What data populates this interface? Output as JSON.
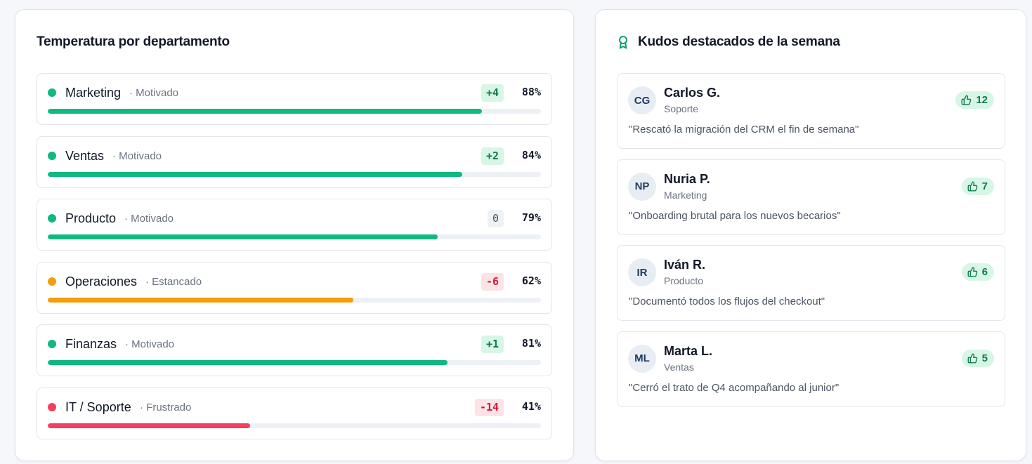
{
  "temperature": {
    "title": "Temperatura por departamento",
    "departments": [
      {
        "name": "Marketing",
        "status": "· Motivado",
        "delta": "+4",
        "percent": "88%",
        "value": 88,
        "tone": "good"
      },
      {
        "name": "Ventas",
        "status": "· Motivado",
        "delta": "+2",
        "percent": "84%",
        "value": 84,
        "tone": "good"
      },
      {
        "name": "Producto",
        "status": "· Motivado",
        "delta": "0",
        "percent": "79%",
        "value": 79,
        "tone": "good",
        "delta_tone": "neutral"
      },
      {
        "name": "Operaciones",
        "status": "· Estancado",
        "delta": "-6",
        "percent": "62%",
        "value": 62,
        "tone": "warn"
      },
      {
        "name": "Finanzas",
        "status": "· Motivado",
        "delta": "+1",
        "percent": "81%",
        "value": 81,
        "tone": "good"
      },
      {
        "name": "IT / Soporte",
        "status": "· Frustrado",
        "delta": "-14",
        "percent": "41%",
        "value": 41,
        "tone": "bad"
      }
    ]
  },
  "kudos": {
    "title": "Kudos destacados de la semana",
    "icon": "award-icon",
    "items": [
      {
        "initials": "CG",
        "name": "Carlos G.",
        "department": "Soporte",
        "quote": "\"Rescató la migración del CRM el fin de semana\"",
        "likes": "12"
      },
      {
        "initials": "NP",
        "name": "Nuria P.",
        "department": "Marketing",
        "quote": "\"Onboarding brutal para los nuevos becarios\"",
        "likes": "7"
      },
      {
        "initials": "IR",
        "name": "Iván R.",
        "department": "Producto",
        "quote": "\"Documentó todos los flujos del checkout\"",
        "likes": "6"
      },
      {
        "initials": "ML",
        "name": "Marta L.",
        "department": "Ventas",
        "quote": "\"Cerró el trato de Q4 acompañando al junior\"",
        "likes": "5"
      }
    ]
  },
  "colors": {
    "good": "#10b981",
    "warn": "#f59e0b",
    "bad": "#f43f5e",
    "good_badge_bg": "#d7f6e6",
    "good_badge_fg": "#0f7a4c",
    "bad_badge_bg": "#fde2e6",
    "bad_badge_fg": "#c81e3a",
    "neutral_badge_bg": "#eef1f5",
    "neutral_badge_fg": "#4b5563"
  }
}
